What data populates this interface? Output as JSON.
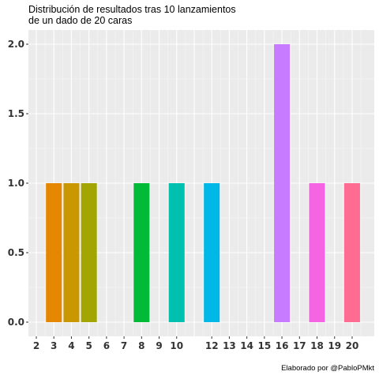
{
  "chart_data": {
    "type": "bar",
    "title": [
      "Distribución de resultados tras 10 lanzamientos",
      "de un dado de 20 caras"
    ],
    "caption": "Elaborado por @PabloPMkt",
    "xlabel": "",
    "ylabel": "",
    "ylim": [
      0,
      2
    ],
    "y_ticks": [
      "0.0",
      "0.5",
      "1.0",
      "1.5",
      "2.0"
    ],
    "x_ticks": [
      "2",
      "3",
      "4",
      "5",
      "6",
      "7",
      "8",
      "9",
      "10",
      "12",
      "13",
      "14",
      "15",
      "16",
      "17",
      "18",
      "19",
      "20"
    ],
    "categories": [
      "3",
      "4",
      "5",
      "8",
      "10",
      "12",
      "16",
      "18",
      "20"
    ],
    "values": [
      1,
      1,
      1,
      1,
      1,
      1,
      2,
      1,
      1
    ],
    "colors": [
      "#E58700",
      "#C99800",
      "#A3A500",
      "#00BA38",
      "#00C0AF",
      "#00B8E7",
      "#C77CFF",
      "#F564E3",
      "#FF6C91"
    ],
    "grid": true,
    "legend": "none"
  }
}
